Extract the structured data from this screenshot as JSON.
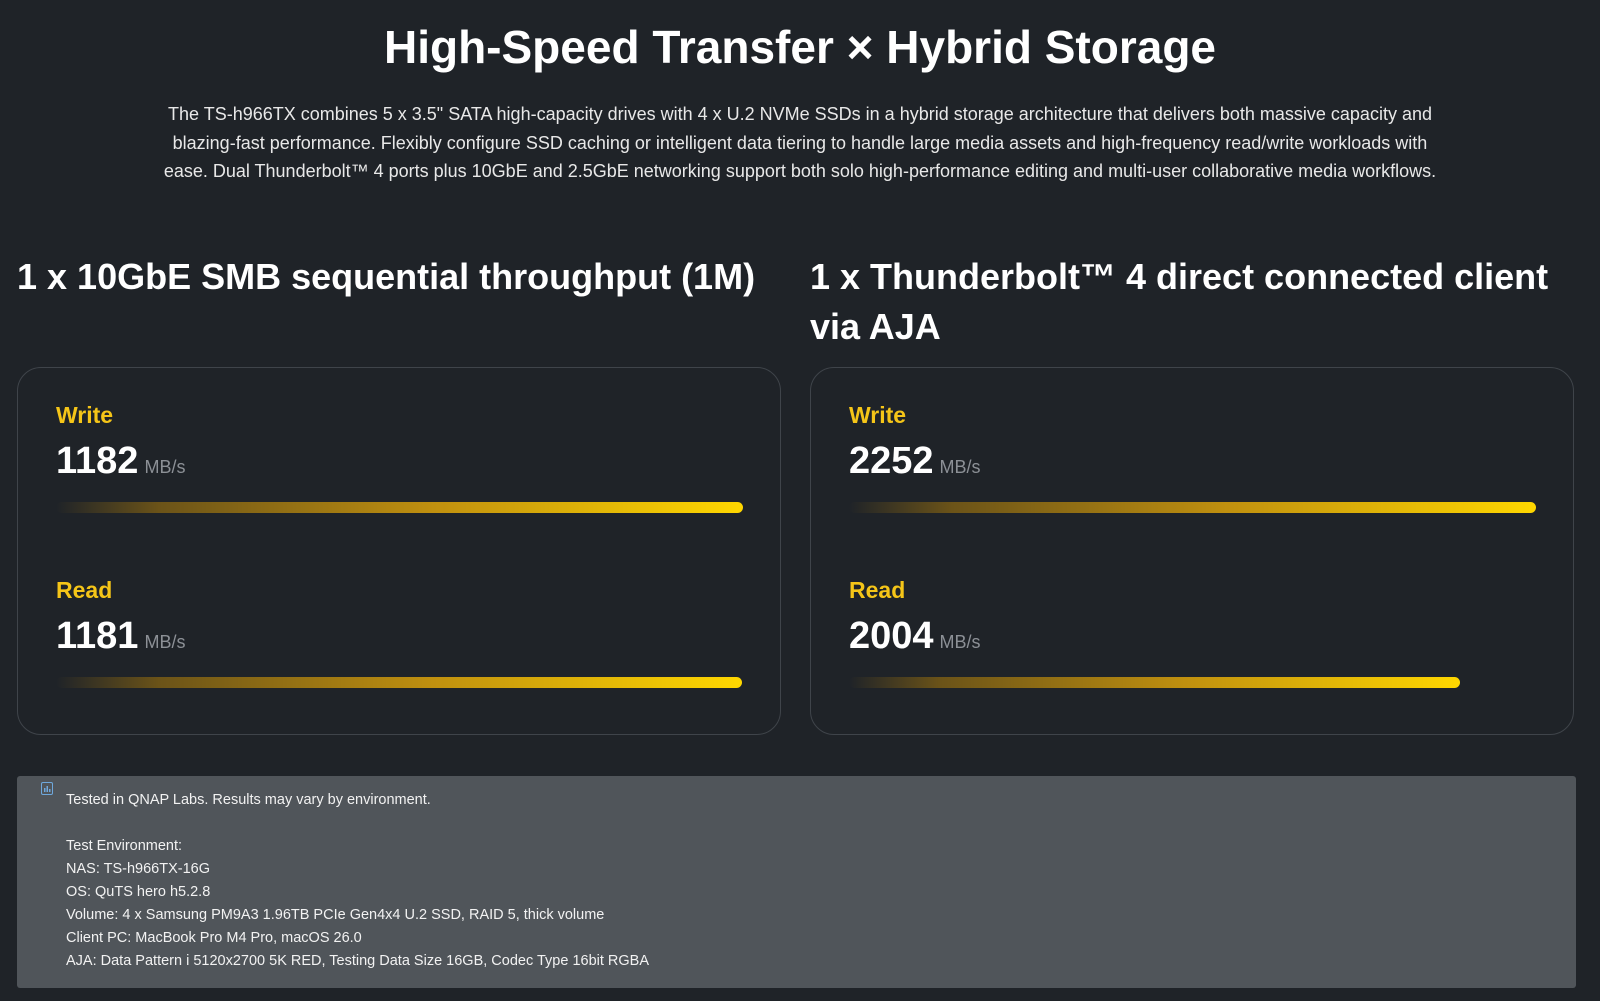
{
  "header": {
    "title": "High-Speed Transfer × Hybrid Storage",
    "description": "The TS-h966TX combines 5 x 3.5\" SATA high-capacity drives with 4 x U.2 NVMe SSDs in a hybrid storage architecture that delivers both massive capacity and blazing-fast performance. Flexibly configure SSD caching or intelligent data tiering to handle large media assets and high-frequency read/write workloads with ease. Dual Thunderbolt™ 4 ports plus 10GbE and 2.5GbE networking support both solo high-performance editing and multi-user collaborative media workflows."
  },
  "panels": [
    {
      "title": "1 x 10GbE SMB sequential throughput (1M)",
      "metrics": [
        {
          "label": "Write",
          "value": 1182,
          "unit": "MB/s"
        },
        {
          "label": "Read",
          "value": 1181,
          "unit": "MB/s"
        }
      ]
    },
    {
      "title": "1 x Thunderbolt™ 4 direct connected client via AJA",
      "metrics": [
        {
          "label": "Write",
          "value": 2252,
          "unit": "MB/s"
        },
        {
          "label": "Read",
          "value": 2004,
          "unit": "MB/s"
        }
      ]
    }
  ],
  "note": {
    "summary": "Tested in QNAP Labs. Results may vary by environment.",
    "environment_title": "Test Environment:",
    "lines": [
      "NAS: TS-h966TX-16G",
      "OS: QuTS hero h5.2.8",
      "Volume: 4 x Samsung PM9A3 1.96TB PCIe Gen4x4 U.2 SSD, RAID 5, thick volume",
      "Client PC: MacBook Pro M4 Pro, macOS 26.0",
      "AJA: Data Pattern i 5120x2700 5K RED, Testing Data Size 16GB, Codec Type 16bit RGBA"
    ]
  }
}
